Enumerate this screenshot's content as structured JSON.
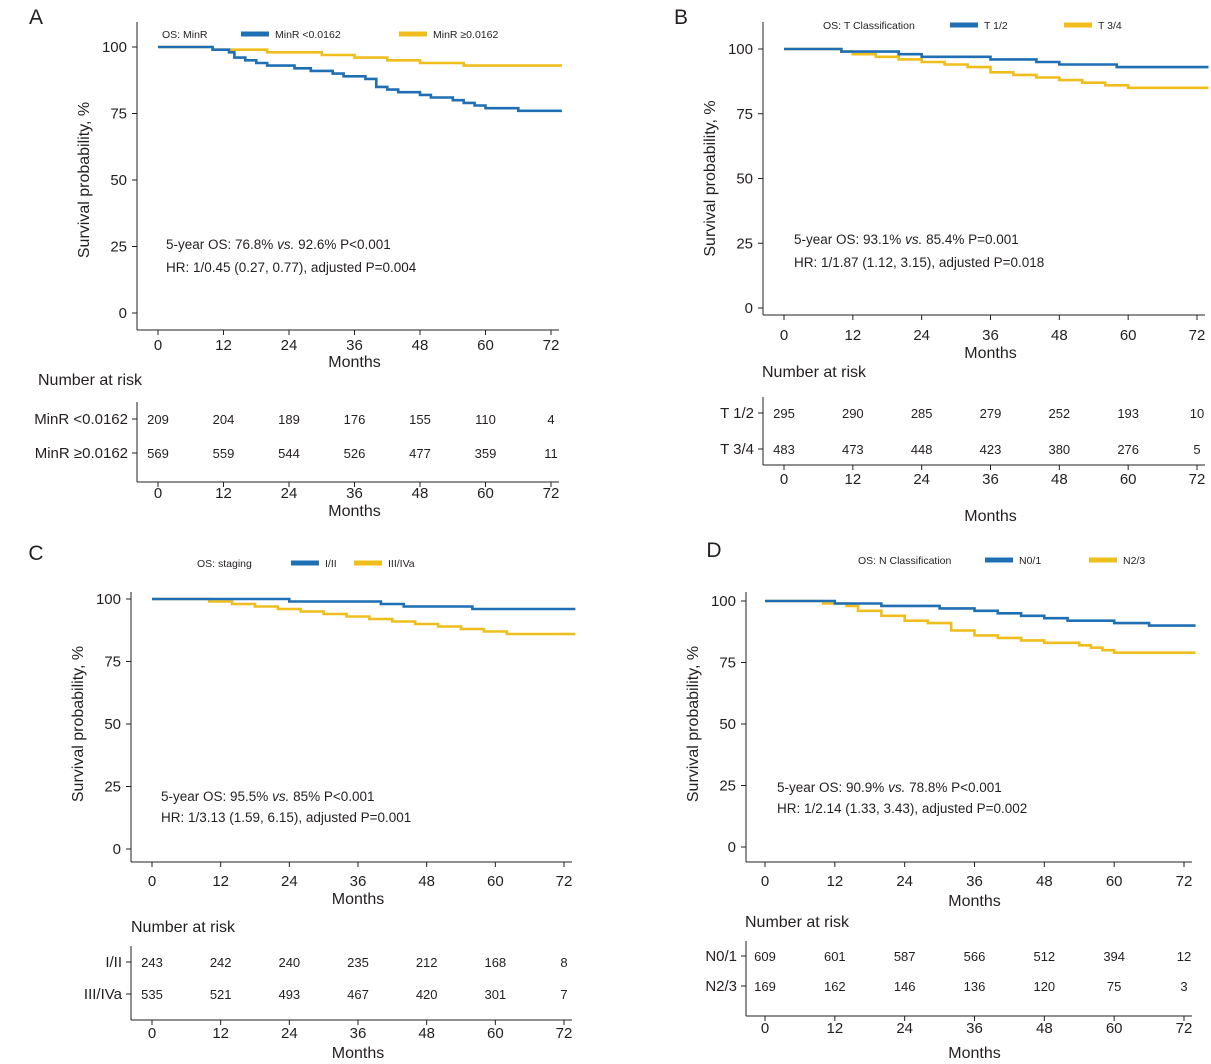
{
  "colors": {
    "blue": "#1f6fb5",
    "yellow": "#f0be1c",
    "axis": "#231f20"
  },
  "chart_data": [
    {
      "type": "line",
      "panel_letter": "A",
      "legend_title": "OS: MinR",
      "xlabel": "Months",
      "ylabel": "Survival probability, %",
      "xticks": [
        0,
        12,
        24,
        36,
        48,
        60,
        72
      ],
      "yticks": [
        0,
        25,
        50,
        75,
        100
      ],
      "xlim": [
        -3,
        74
      ],
      "ylim": [
        -3,
        103
      ],
      "legend_position": "top",
      "series": [
        {
          "name": "MinR <0.0162",
          "color": "#1f6fb5",
          "x": [
            0,
            8,
            10,
            12,
            13,
            14,
            16,
            18,
            20,
            22,
            25,
            28,
            30,
            32,
            34,
            36,
            38,
            40,
            42,
            44,
            46,
            48,
            50,
            52,
            54,
            56,
            58,
            60,
            66,
            74
          ],
          "y": [
            100,
            100,
            99,
            99,
            98,
            96,
            95,
            94,
            93,
            93,
            92,
            91,
            91,
            90,
            89,
            89,
            88,
            85,
            84,
            83,
            83,
            82,
            81,
            81,
            80,
            79,
            78,
            77,
            76,
            76
          ]
        },
        {
          "name": "MinR ≥0.0162",
          "color": "#f0be1c",
          "x": [
            0,
            10,
            12,
            20,
            24,
            30,
            36,
            42,
            48,
            54,
            56,
            74
          ],
          "y": [
            100,
            99,
            99,
            98,
            98,
            97,
            96,
            95,
            94,
            94,
            93,
            93
          ]
        }
      ],
      "annotation_line1_prefix": "5-year OS: 76.8% ",
      "annotation_line1_vs": "vs.",
      "annotation_line1_suffix": " 92.6% P<0.001",
      "annotation_line2": "HR: 1/0.45 (0.27, 0.77), adjusted P=0.004",
      "risk_title": "Number at risk",
      "risk_rows": [
        {
          "label": "MinR <0.0162",
          "values": [
            "209",
            "204",
            "189",
            "176",
            "155",
            "110",
            "4"
          ]
        },
        {
          "label": "MinR ≥0.0162",
          "values": [
            "569",
            "559",
            "544",
            "526",
            "477",
            "359",
            "11"
          ]
        }
      ],
      "risk_xlabel": "Months"
    },
    {
      "type": "line",
      "panel_letter": "B",
      "legend_title": "OS: T Classification",
      "xlabel": "Months",
      "ylabel": "Survival probability, %",
      "xticks": [
        0,
        12,
        24,
        36,
        48,
        60,
        72
      ],
      "yticks": [
        0,
        25,
        50,
        75,
        100
      ],
      "xlim": [
        -3,
        74
      ],
      "ylim": [
        -3,
        103
      ],
      "legend_position": "top",
      "series": [
        {
          "name": "T 1/2",
          "color": "#1f6fb5",
          "x": [
            0,
            6,
            10,
            16,
            20,
            24,
            30,
            36,
            44,
            48,
            54,
            58,
            74
          ],
          "y": [
            100,
            100,
            99,
            99,
            98,
            97,
            97,
            96,
            95,
            94,
            94,
            93,
            93
          ]
        },
        {
          "name": "T 3/4",
          "color": "#f0be1c",
          "x": [
            0,
            6,
            10,
            12,
            16,
            20,
            24,
            28,
            32,
            36,
            40,
            44,
            48,
            52,
            56,
            60,
            64,
            74
          ],
          "y": [
            100,
            100,
            99,
            98,
            97,
            96,
            95,
            94,
            93,
            91,
            90,
            89,
            88,
            87,
            86,
            85,
            85,
            85
          ]
        }
      ],
      "annotation_line1_prefix": "5-year OS: 93.1% ",
      "annotation_line1_vs": "vs.",
      "annotation_line1_suffix": " 85.4% P=0.001",
      "annotation_line2": "HR: 1/1.87 (1.12, 3.15), adjusted P=0.018",
      "risk_title": "Number at risk",
      "risk_rows": [
        {
          "label": "T 1/2",
          "values": [
            "295",
            "290",
            "285",
            "279",
            "252",
            "193",
            "10"
          ]
        },
        {
          "label": "T 3/4",
          "values": [
            "483",
            "473",
            "448",
            "423",
            "380",
            "276",
            "5"
          ]
        }
      ],
      "risk_xlabel": "Months"
    },
    {
      "type": "line",
      "panel_letter": "C",
      "legend_title": "OS: staging",
      "xlabel": "Months",
      "ylabel": "Survival probability, %",
      "xticks": [
        0,
        12,
        24,
        36,
        48,
        60,
        72
      ],
      "yticks": [
        0,
        25,
        50,
        75,
        100
      ],
      "xlim": [
        -3,
        74
      ],
      "ylim": [
        -3,
        103
      ],
      "legend_position": "top",
      "series": [
        {
          "name": "I/II",
          "color": "#1f6fb5",
          "x": [
            0,
            16,
            24,
            36,
            40,
            44,
            50,
            56,
            60,
            74
          ],
          "y": [
            100,
            100,
            99,
            99,
            98,
            97,
            97,
            96,
            96,
            96
          ]
        },
        {
          "name": "III/IVa",
          "color": "#f0be1c",
          "x": [
            0,
            6,
            10,
            14,
            18,
            22,
            26,
            30,
            34,
            38,
            42,
            46,
            50,
            54,
            58,
            62,
            74
          ],
          "y": [
            100,
            100,
            99,
            98,
            97,
            96,
            95,
            94,
            93,
            92,
            91,
            90,
            89,
            88,
            87,
            86,
            86
          ]
        }
      ],
      "annotation_line1_prefix": "5-year OS: 95.5% ",
      "annotation_line1_vs": "vs.",
      "annotation_line1_suffix": " 85% P<0.001",
      "annotation_line2": "HR: 1/3.13 (1.59, 6.15), adjusted P=0.001",
      "risk_title": "Number at risk",
      "risk_rows": [
        {
          "label": "I/II",
          "values": [
            "243",
            "242",
            "240",
            "235",
            "212",
            "168",
            "8"
          ]
        },
        {
          "label": "III/IVa",
          "values": [
            "535",
            "521",
            "493",
            "467",
            "420",
            "301",
            "7"
          ]
        }
      ],
      "risk_xlabel": "Months"
    },
    {
      "type": "line",
      "panel_letter": "D",
      "legend_title": "OS: N Classification",
      "xlabel": "Months",
      "ylabel": "Survival probability, %",
      "xticks": [
        0,
        12,
        24,
        36,
        48,
        60,
        72
      ],
      "yticks": [
        0,
        25,
        50,
        75,
        100
      ],
      "xlim": [
        -3,
        74
      ],
      "ylim": [
        -3,
        103
      ],
      "legend_position": "top",
      "series": [
        {
          "name": "N0/1",
          "color": "#1f6fb5",
          "x": [
            0,
            8,
            12,
            16,
            20,
            24,
            30,
            36,
            40,
            44,
            48,
            52,
            56,
            60,
            66,
            74
          ],
          "y": [
            100,
            100,
            99,
            99,
            98,
            98,
            97,
            96,
            95,
            94,
            93,
            92,
            92,
            91,
            90,
            90
          ]
        },
        {
          "name": "N2/3",
          "color": "#f0be1c",
          "x": [
            0,
            6,
            10,
            14,
            16,
            20,
            24,
            28,
            32,
            36,
            40,
            44,
            48,
            52,
            54,
            56,
            58,
            60,
            74
          ],
          "y": [
            100,
            100,
            99,
            98,
            96,
            94,
            92,
            91,
            88,
            86,
            85,
            84,
            83,
            83,
            82,
            81,
            80,
            79,
            79
          ]
        }
      ],
      "annotation_line1_prefix": "5-year OS: 90.9% ",
      "annotation_line1_vs": "vs.",
      "annotation_line1_suffix": " 78.8% P<0.001",
      "annotation_line2": "HR: 1/2.14 (1.33, 3.43), adjusted P=0.002",
      "risk_title": "Number at risk",
      "risk_rows": [
        {
          "label": "N0/1",
          "values": [
            "609",
            "601",
            "587",
            "566",
            "512",
            "394",
            "12"
          ]
        },
        {
          "label": "N2/3",
          "values": [
            "169",
            "162",
            "146",
            "136",
            "120",
            "75",
            "3"
          ]
        }
      ],
      "risk_xlabel": "Months"
    }
  ]
}
